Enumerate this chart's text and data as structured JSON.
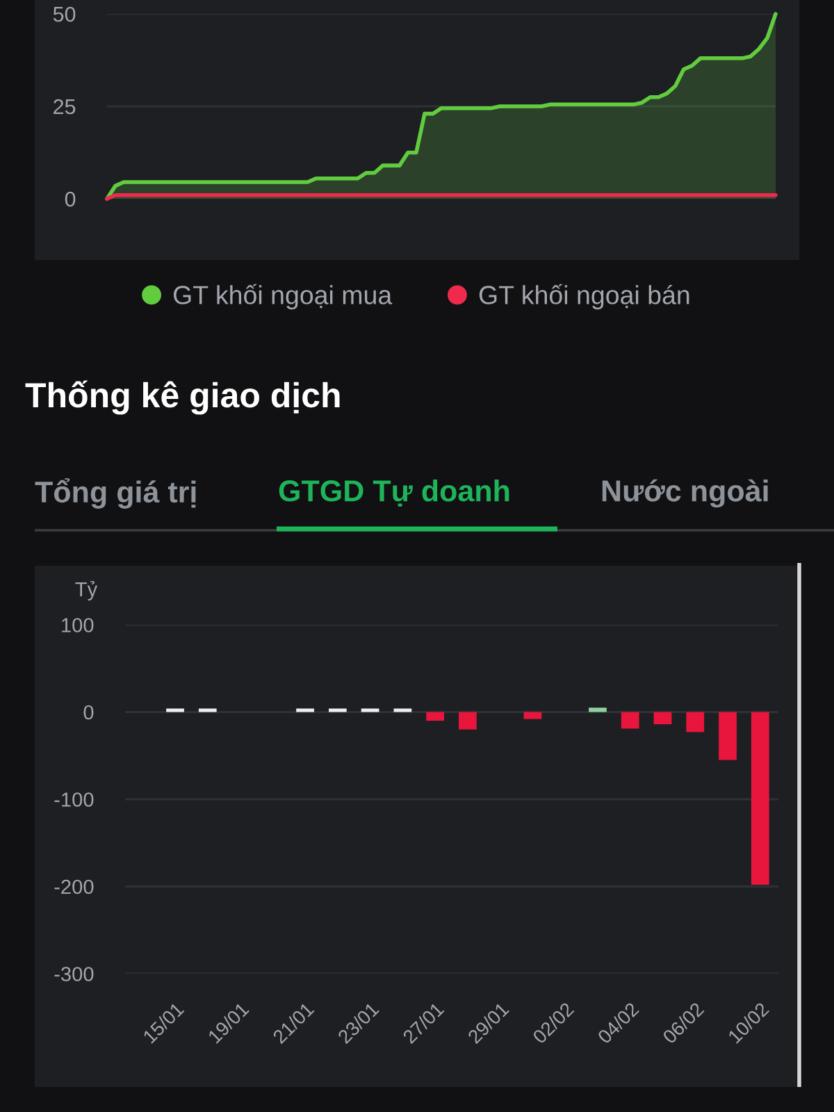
{
  "chart_data": [
    {
      "type": "line",
      "categories": [
        null,
        null,
        null,
        null,
        null,
        null,
        null,
        null,
        null,
        null,
        null,
        null,
        null,
        null,
        null,
        null,
        null,
        null,
        null,
        null,
        null,
        null,
        null,
        null,
        null,
        null,
        null,
        null,
        null,
        null,
        null,
        null,
        null,
        null,
        null,
        null,
        null,
        null,
        null,
        null,
        null,
        null,
        null,
        null,
        null,
        null,
        null,
        null,
        null,
        null,
        null,
        null,
        null,
        null,
        null,
        null,
        null,
        null,
        null,
        null,
        null,
        null,
        null,
        null,
        null,
        null,
        null,
        null,
        null,
        null,
        null,
        null,
        null,
        null,
        null,
        null,
        null,
        null,
        null,
        null,
        null
      ],
      "series": [
        {
          "name": "GT khối ngoại mua",
          "type": "area",
          "color": "#62cc3f",
          "values": [
            0,
            3.5,
            4.5,
            4.5,
            4.5,
            4.5,
            4.5,
            4.5,
            4.5,
            4.5,
            4.5,
            4.5,
            4.5,
            4.5,
            4.5,
            4.5,
            4.5,
            4.5,
            4.5,
            4.5,
            4.5,
            4.5,
            4.5,
            4.5,
            4.5,
            5.5,
            5.5,
            5.5,
            5.5,
            5.5,
            5.5,
            7,
            7,
            9,
            9,
            9,
            12.5,
            12.5,
            23,
            23,
            24.5,
            24.5,
            24.5,
            24.5,
            24.5,
            24.5,
            24.5,
            25,
            25,
            25,
            25,
            25,
            25,
            25.5,
            25.5,
            25.5,
            25.5,
            25.5,
            25.5,
            25.5,
            25.5,
            25.5,
            25.5,
            25.5,
            26,
            27.5,
            27.5,
            28.5,
            30.5,
            35,
            36,
            38,
            38,
            38,
            38,
            38,
            38,
            38.5,
            40.5,
            43.5,
            50
          ]
        },
        {
          "name": "GT khối ngoại bán",
          "type": "line",
          "color": "#ef2a4d",
          "values": [
            0,
            1,
            1,
            1,
            1,
            1,
            1,
            1,
            1,
            1,
            1,
            1,
            1,
            1,
            1,
            1,
            1,
            1,
            1,
            1,
            1,
            1,
            1,
            1,
            1,
            1,
            1,
            1,
            1,
            1,
            1,
            1,
            1,
            1,
            1,
            1,
            1,
            1,
            1,
            1,
            1,
            1,
            1,
            1,
            1,
            1,
            1,
            1,
            1,
            1,
            1,
            1,
            1,
            1,
            1,
            1,
            1,
            1,
            1,
            1,
            1,
            1,
            1,
            1,
            1,
            1,
            1,
            1,
            1,
            1,
            1,
            1,
            1,
            1,
            1,
            1,
            1,
            1,
            1,
            1,
            1
          ]
        }
      ],
      "ylim": [
        0,
        50
      ],
      "yticks": [
        0,
        25,
        50
      ],
      "grid": "y",
      "legend": "bottom",
      "tick_labels": "y"
    },
    {
      "type": "bar",
      "title": "Thống kê giao dịch",
      "subtitle": "GTGD Tự doanh",
      "annotations": [
        "Tổng giá trị",
        "Nước ngoài"
      ],
      "ylabel": "Tỷ",
      "categories": [
        "15/01",
        null,
        "19/01",
        null,
        "21/01",
        null,
        "23/01",
        null,
        "27/01",
        null,
        "29/01",
        null,
        "02/02",
        null,
        "04/02",
        null,
        "06/02",
        null,
        "10/02"
      ],
      "values": [
        4,
        4,
        null,
        null,
        4,
        4,
        4,
        4,
        -10,
        -20,
        null,
        -8,
        null,
        5,
        -19,
        -14,
        -23,
        -55,
        -198
      ],
      "colors": [
        "#eeeeee",
        "#eeeeee",
        null,
        null,
        "#eeeeee",
        "#eeeeee",
        "#eeeeee",
        "#eeeeee",
        "#e8163c",
        "#e8163c",
        null,
        "#e8163c",
        null,
        "#8fd19e",
        "#e8163c",
        "#e8163c",
        "#e8163c",
        "#e8163c",
        "#e8163c"
      ],
      "ylim": [
        -300,
        100
      ],
      "yticks": [
        100,
        0,
        -100,
        -200,
        -300
      ],
      "grid": "y"
    }
  ]
}
